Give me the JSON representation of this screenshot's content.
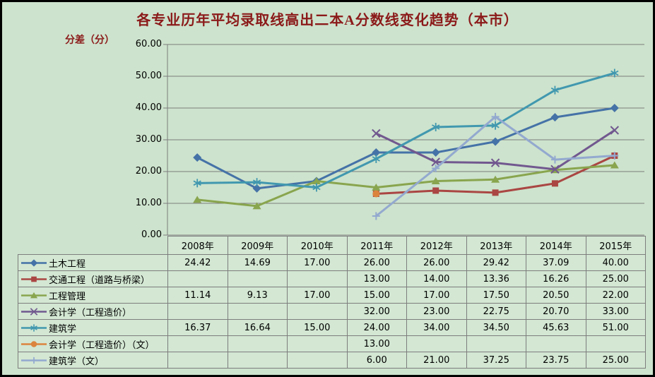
{
  "colors": {
    "background": "#cde3cd",
    "cell_background": "#d3e7d3",
    "frame": "#000000",
    "grid": "#7d7d7d",
    "title_text": "#8b1a1a",
    "axis_text": "#000000"
  },
  "chart_data": {
    "type": "line",
    "title": "各专业历年平均录取线高出二本A分数线变化趋势（本市）",
    "y_axis_title": "分差（分）",
    "xlabel": "",
    "ylabel": "分差（分）",
    "ylim": [
      0,
      60
    ],
    "y_ticks": [
      "0.00",
      "10.00",
      "20.00",
      "30.00",
      "40.00",
      "50.00",
      "60.00"
    ],
    "grid": "horizontal",
    "legend_position": "table-left",
    "categories": [
      "2008年",
      "2009年",
      "2010年",
      "2011年",
      "2012年",
      "2013年",
      "2014年",
      "2015年"
    ],
    "series": [
      {
        "name": "土木工程",
        "color": "#4572A7",
        "marker": "diamond",
        "values": [
          24.42,
          14.69,
          17.0,
          26.0,
          26.0,
          29.42,
          37.09,
          40.0
        ]
      },
      {
        "name": "交通工程（道路与桥梁）",
        "color": "#AA4643",
        "marker": "square",
        "values": [
          null,
          null,
          null,
          13.0,
          14.0,
          13.36,
          16.26,
          25.0
        ]
      },
      {
        "name": "工程管理",
        "color": "#89A54E",
        "marker": "triangle",
        "values": [
          11.14,
          9.13,
          17.0,
          15.0,
          17.0,
          17.5,
          20.5,
          22.0
        ]
      },
      {
        "name": "会计学（工程造价）",
        "color": "#71588F",
        "marker": "x",
        "values": [
          null,
          null,
          null,
          32.0,
          23.0,
          22.75,
          20.7,
          33.0
        ]
      },
      {
        "name": "建筑学",
        "color": "#4198AF",
        "marker": "asterisk",
        "values": [
          16.37,
          16.64,
          15.0,
          24.0,
          34.0,
          34.5,
          45.63,
          51.0
        ]
      },
      {
        "name": "会计学（工程造价）（文）",
        "color": "#DB843D",
        "marker": "circle",
        "values": [
          null,
          null,
          null,
          13.0,
          null,
          null,
          null,
          null
        ]
      },
      {
        "name": "建筑学（文）",
        "color": "#93A9CF",
        "marker": "plus",
        "values": [
          null,
          null,
          null,
          6.0,
          21.0,
          37.25,
          23.75,
          25.0
        ]
      }
    ]
  }
}
